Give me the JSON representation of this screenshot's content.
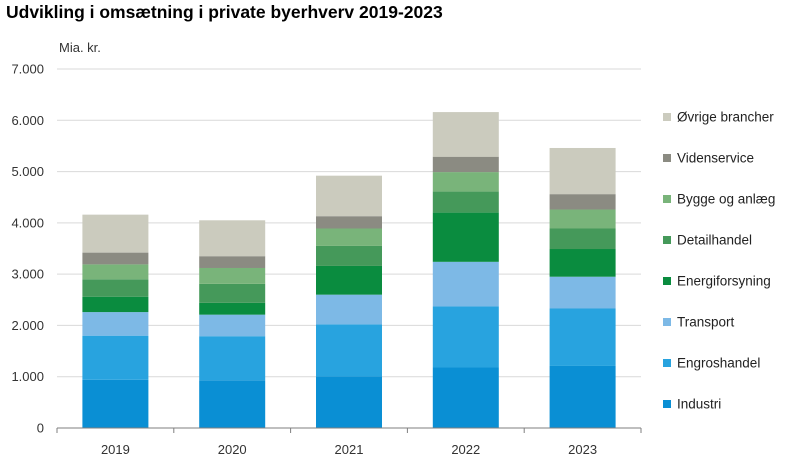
{
  "chart_data": {
    "type": "bar",
    "stacked": true,
    "title": "Udvikling i omsætning i private byerhverv 2019-2023",
    "ylabel": "Mia. kr.",
    "xlabel": "",
    "ylim": [
      0,
      7000
    ],
    "yticks": [
      0,
      1000,
      2000,
      3000,
      4000,
      5000,
      6000,
      7000
    ],
    "ytick_labels": [
      "0",
      "1.000",
      "2.000",
      "3.000",
      "4.000",
      "5.000",
      "6.000",
      "7.000"
    ],
    "grid": true,
    "legend_position": "right",
    "categories": [
      "2019",
      "2020",
      "2021",
      "2022",
      "2023"
    ],
    "series": [
      {
        "name": "Industri",
        "color": "#0A8FD4",
        "values": [
          940,
          930,
          1010,
          1180,
          1210
        ]
      },
      {
        "name": "Engroshandel",
        "color": "#28A3DF",
        "values": [
          860,
          860,
          1010,
          1190,
          1120
        ]
      },
      {
        "name": "Transport",
        "color": "#7DB9E6",
        "values": [
          460,
          420,
          580,
          870,
          620
        ]
      },
      {
        "name": "Energiforsyning",
        "color": "#0A8C3F",
        "values": [
          300,
          230,
          560,
          960,
          540
        ]
      },
      {
        "name": "Detailhandel",
        "color": "#45995A",
        "values": [
          340,
          370,
          390,
          410,
          400
        ]
      },
      {
        "name": "Bygge og anlæg",
        "color": "#79B47A",
        "values": [
          290,
          310,
          340,
          380,
          370
        ]
      },
      {
        "name": "Videnservice",
        "color": "#8B8B82",
        "values": [
          230,
          230,
          240,
          300,
          300
        ]
      },
      {
        "name": "Øvrige brancher",
        "color": "#CBCBBE",
        "values": [
          740,
          700,
          790,
          870,
          900
        ]
      }
    ]
  }
}
